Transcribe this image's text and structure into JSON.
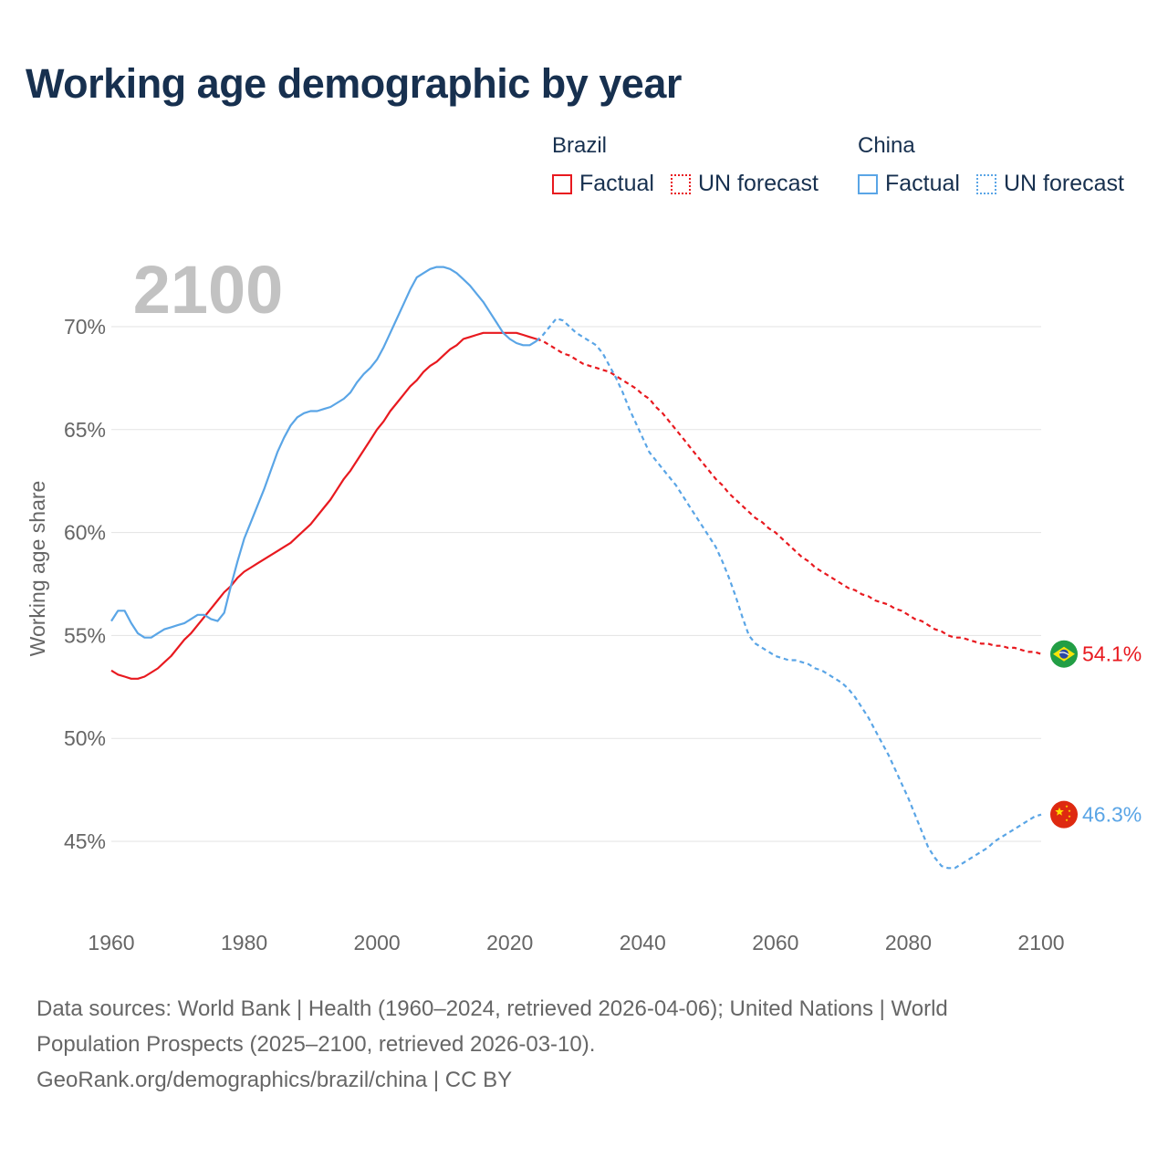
{
  "title": "Working age demographic by year",
  "legend": {
    "groups": [
      {
        "name": "Brazil",
        "color": "#e8191f",
        "factual_label": "Factual",
        "forecast_label": "UN forecast"
      },
      {
        "name": "China",
        "color": "#5aa5e6",
        "factual_label": "Factual",
        "forecast_label": "UN forecast"
      }
    ]
  },
  "chart_data": {
    "type": "line",
    "title": "Working age demographic by year",
    "year_watermark": "2100",
    "xlabel": "",
    "ylabel": "Working age share",
    "xlim": [
      1960,
      2100
    ],
    "ylim": [
      42,
      73
    ],
    "x_ticks": [
      "1960",
      "1980",
      "2000",
      "2020",
      "2040",
      "2060",
      "2080",
      "2100"
    ],
    "y_ticks": [
      "45%",
      "50%",
      "55%",
      "60%",
      "65%",
      "70%"
    ],
    "grid": true,
    "legend_position": "top-right",
    "series": [
      {
        "name": "Brazil",
        "color": "#e8191f",
        "flag_icon": "brazil-flag-icon",
        "end_label": "54.1%",
        "factual": [
          [
            1960,
            53.3
          ],
          [
            1961,
            53.1
          ],
          [
            1962,
            53.0
          ],
          [
            1963,
            52.9
          ],
          [
            1964,
            52.9
          ],
          [
            1965,
            53.0
          ],
          [
            1966,
            53.2
          ],
          [
            1967,
            53.4
          ],
          [
            1968,
            53.7
          ],
          [
            1969,
            54.0
          ],
          [
            1970,
            54.4
          ],
          [
            1971,
            54.8
          ],
          [
            1972,
            55.1
          ],
          [
            1973,
            55.5
          ],
          [
            1974,
            55.9
          ],
          [
            1975,
            56.3
          ],
          [
            1976,
            56.7
          ],
          [
            1977,
            57.1
          ],
          [
            1978,
            57.4
          ],
          [
            1979,
            57.8
          ],
          [
            1980,
            58.1
          ],
          [
            1981,
            58.3
          ],
          [
            1982,
            58.5
          ],
          [
            1983,
            58.7
          ],
          [
            1984,
            58.9
          ],
          [
            1985,
            59.1
          ],
          [
            1986,
            59.3
          ],
          [
            1987,
            59.5
          ],
          [
            1988,
            59.8
          ],
          [
            1989,
            60.1
          ],
          [
            1990,
            60.4
          ],
          [
            1991,
            60.8
          ],
          [
            1992,
            61.2
          ],
          [
            1993,
            61.6
          ],
          [
            1994,
            62.1
          ],
          [
            1995,
            62.6
          ],
          [
            1996,
            63.0
          ],
          [
            1997,
            63.5
          ],
          [
            1998,
            64.0
          ],
          [
            1999,
            64.5
          ],
          [
            2000,
            65.0
          ],
          [
            2001,
            65.4
          ],
          [
            2002,
            65.9
          ],
          [
            2003,
            66.3
          ],
          [
            2004,
            66.7
          ],
          [
            2005,
            67.1
          ],
          [
            2006,
            67.4
          ],
          [
            2007,
            67.8
          ],
          [
            2008,
            68.1
          ],
          [
            2009,
            68.3
          ],
          [
            2010,
            68.6
          ],
          [
            2011,
            68.9
          ],
          [
            2012,
            69.1
          ],
          [
            2013,
            69.4
          ],
          [
            2014,
            69.5
          ],
          [
            2015,
            69.6
          ],
          [
            2016,
            69.7
          ],
          [
            2017,
            69.7
          ],
          [
            2018,
            69.7
          ],
          [
            2019,
            69.7
          ],
          [
            2020,
            69.7
          ],
          [
            2021,
            69.7
          ],
          [
            2022,
            69.6
          ],
          [
            2023,
            69.5
          ],
          [
            2024,
            69.4
          ]
        ],
        "forecast": [
          [
            2024,
            69.4
          ],
          [
            2025,
            69.3
          ],
          [
            2026,
            69.1
          ],
          [
            2027,
            68.9
          ],
          [
            2028,
            68.7
          ],
          [
            2029,
            68.6
          ],
          [
            2030,
            68.4
          ],
          [
            2031,
            68.2
          ],
          [
            2032,
            68.1
          ],
          [
            2033,
            68.0
          ],
          [
            2034,
            67.9
          ],
          [
            2035,
            67.8
          ],
          [
            2036,
            67.6
          ],
          [
            2037,
            67.4
          ],
          [
            2038,
            67.2
          ],
          [
            2039,
            67.0
          ],
          [
            2040,
            66.7
          ],
          [
            2041,
            66.5
          ],
          [
            2042,
            66.1
          ],
          [
            2043,
            65.8
          ],
          [
            2044,
            65.4
          ],
          [
            2045,
            65.0
          ],
          [
            2046,
            64.6
          ],
          [
            2047,
            64.2
          ],
          [
            2048,
            63.8
          ],
          [
            2049,
            63.4
          ],
          [
            2050,
            63.0
          ],
          [
            2051,
            62.6
          ],
          [
            2052,
            62.3
          ],
          [
            2053,
            61.9
          ],
          [
            2054,
            61.6
          ],
          [
            2055,
            61.3
          ],
          [
            2056,
            61.0
          ],
          [
            2057,
            60.7
          ],
          [
            2058,
            60.5
          ],
          [
            2059,
            60.2
          ],
          [
            2060,
            60.0
          ],
          [
            2061,
            59.7
          ],
          [
            2062,
            59.4
          ],
          [
            2063,
            59.1
          ],
          [
            2064,
            58.8
          ],
          [
            2065,
            58.6
          ],
          [
            2066,
            58.3
          ],
          [
            2067,
            58.1
          ],
          [
            2068,
            57.9
          ],
          [
            2069,
            57.7
          ],
          [
            2070,
            57.5
          ],
          [
            2071,
            57.3
          ],
          [
            2072,
            57.2
          ],
          [
            2073,
            57.0
          ],
          [
            2074,
            56.9
          ],
          [
            2075,
            56.7
          ],
          [
            2076,
            56.6
          ],
          [
            2077,
            56.5
          ],
          [
            2078,
            56.3
          ],
          [
            2079,
            56.2
          ],
          [
            2080,
            56.0
          ],
          [
            2081,
            55.8
          ],
          [
            2082,
            55.7
          ],
          [
            2083,
            55.5
          ],
          [
            2084,
            55.3
          ],
          [
            2085,
            55.2
          ],
          [
            2086,
            55.0
          ],
          [
            2087,
            54.9
          ],
          [
            2088,
            54.9
          ],
          [
            2089,
            54.8
          ],
          [
            2090,
            54.7
          ],
          [
            2091,
            54.6
          ],
          [
            2092,
            54.6
          ],
          [
            2093,
            54.5
          ],
          [
            2094,
            54.5
          ],
          [
            2095,
            54.4
          ],
          [
            2096,
            54.4
          ],
          [
            2097,
            54.3
          ],
          [
            2098,
            54.2
          ],
          [
            2099,
            54.2
          ],
          [
            2100,
            54.1
          ]
        ]
      },
      {
        "name": "China",
        "color": "#5aa5e6",
        "flag_icon": "china-flag-icon",
        "end_label": "46.3%",
        "factual": [
          [
            1960,
            55.7
          ],
          [
            1961,
            56.2
          ],
          [
            1962,
            56.2
          ],
          [
            1963,
            55.6
          ],
          [
            1964,
            55.1
          ],
          [
            1965,
            54.9
          ],
          [
            1966,
            54.9
          ],
          [
            1967,
            55.1
          ],
          [
            1968,
            55.3
          ],
          [
            1969,
            55.4
          ],
          [
            1970,
            55.5
          ],
          [
            1971,
            55.6
          ],
          [
            1972,
            55.8
          ],
          [
            1973,
            56.0
          ],
          [
            1974,
            56.0
          ],
          [
            1975,
            55.8
          ],
          [
            1976,
            55.7
          ],
          [
            1977,
            56.1
          ],
          [
            1978,
            57.4
          ],
          [
            1979,
            58.6
          ],
          [
            1980,
            59.7
          ],
          [
            1981,
            60.5
          ],
          [
            1982,
            61.3
          ],
          [
            1983,
            62.1
          ],
          [
            1984,
            63.0
          ],
          [
            1985,
            63.9
          ],
          [
            1986,
            64.6
          ],
          [
            1987,
            65.2
          ],
          [
            1988,
            65.6
          ],
          [
            1989,
            65.8
          ],
          [
            1990,
            65.9
          ],
          [
            1991,
            65.9
          ],
          [
            1992,
            66.0
          ],
          [
            1993,
            66.1
          ],
          [
            1994,
            66.3
          ],
          [
            1995,
            66.5
          ],
          [
            1996,
            66.8
          ],
          [
            1997,
            67.3
          ],
          [
            1998,
            67.7
          ],
          [
            1999,
            68.0
          ],
          [
            2000,
            68.4
          ],
          [
            2001,
            69.0
          ],
          [
            2002,
            69.7
          ],
          [
            2003,
            70.4
          ],
          [
            2004,
            71.1
          ],
          [
            2005,
            71.8
          ],
          [
            2006,
            72.4
          ],
          [
            2007,
            72.6
          ],
          [
            2008,
            72.8
          ],
          [
            2009,
            72.9
          ],
          [
            2010,
            72.9
          ],
          [
            2011,
            72.8
          ],
          [
            2012,
            72.6
          ],
          [
            2013,
            72.3
          ],
          [
            2014,
            72.0
          ],
          [
            2015,
            71.6
          ],
          [
            2016,
            71.2
          ],
          [
            2017,
            70.7
          ],
          [
            2018,
            70.2
          ],
          [
            2019,
            69.7
          ],
          [
            2020,
            69.4
          ],
          [
            2021,
            69.2
          ],
          [
            2022,
            69.1
          ],
          [
            2023,
            69.1
          ],
          [
            2024,
            69.3
          ]
        ],
        "forecast": [
          [
            2024,
            69.3
          ],
          [
            2025,
            69.6
          ],
          [
            2026,
            70.0
          ],
          [
            2027,
            70.4
          ],
          [
            2028,
            70.3
          ],
          [
            2029,
            70.0
          ],
          [
            2030,
            69.7
          ],
          [
            2031,
            69.5
          ],
          [
            2032,
            69.3
          ],
          [
            2033,
            69.1
          ],
          [
            2034,
            68.7
          ],
          [
            2035,
            68.1
          ],
          [
            2036,
            67.5
          ],
          [
            2037,
            66.8
          ],
          [
            2038,
            66.0
          ],
          [
            2039,
            65.3
          ],
          [
            2040,
            64.6
          ],
          [
            2041,
            63.9
          ],
          [
            2042,
            63.5
          ],
          [
            2043,
            63.1
          ],
          [
            2044,
            62.7
          ],
          [
            2045,
            62.3
          ],
          [
            2046,
            61.8
          ],
          [
            2047,
            61.3
          ],
          [
            2048,
            60.8
          ],
          [
            2049,
            60.3
          ],
          [
            2050,
            59.8
          ],
          [
            2051,
            59.3
          ],
          [
            2052,
            58.6
          ],
          [
            2053,
            57.8
          ],
          [
            2054,
            56.9
          ],
          [
            2055,
            55.9
          ],
          [
            2056,
            55.0
          ],
          [
            2057,
            54.6
          ],
          [
            2058,
            54.4
          ],
          [
            2059,
            54.2
          ],
          [
            2060,
            54.0
          ],
          [
            2061,
            53.9
          ],
          [
            2062,
            53.8
          ],
          [
            2063,
            53.8
          ],
          [
            2064,
            53.7
          ],
          [
            2065,
            53.6
          ],
          [
            2066,
            53.4
          ],
          [
            2067,
            53.3
          ],
          [
            2068,
            53.1
          ],
          [
            2069,
            52.9
          ],
          [
            2070,
            52.7
          ],
          [
            2071,
            52.4
          ],
          [
            2072,
            52.0
          ],
          [
            2073,
            51.5
          ],
          [
            2074,
            51.0
          ],
          [
            2075,
            50.4
          ],
          [
            2076,
            49.8
          ],
          [
            2077,
            49.2
          ],
          [
            2078,
            48.5
          ],
          [
            2079,
            47.8
          ],
          [
            2080,
            47.1
          ],
          [
            2081,
            46.3
          ],
          [
            2082,
            45.5
          ],
          [
            2083,
            44.7
          ],
          [
            2084,
            44.2
          ],
          [
            2085,
            43.8
          ],
          [
            2086,
            43.7
          ],
          [
            2087,
            43.7
          ],
          [
            2088,
            43.9
          ],
          [
            2089,
            44.1
          ],
          [
            2090,
            44.3
          ],
          [
            2091,
            44.5
          ],
          [
            2092,
            44.7
          ],
          [
            2093,
            45.0
          ],
          [
            2094,
            45.2
          ],
          [
            2095,
            45.4
          ],
          [
            2096,
            45.6
          ],
          [
            2097,
            45.8
          ],
          [
            2098,
            46.0
          ],
          [
            2099,
            46.2
          ],
          [
            2100,
            46.3
          ]
        ]
      }
    ]
  },
  "sources": {
    "line1": "Data sources: World Bank | Health (1960–2024, retrieved 2026-04-06); United Nations | World",
    "line2": "Population Prospects (2025–2100, retrieved 2026-03-10).",
    "line3": "GeoRank.org/demographics/brazil/china | CC BY"
  }
}
